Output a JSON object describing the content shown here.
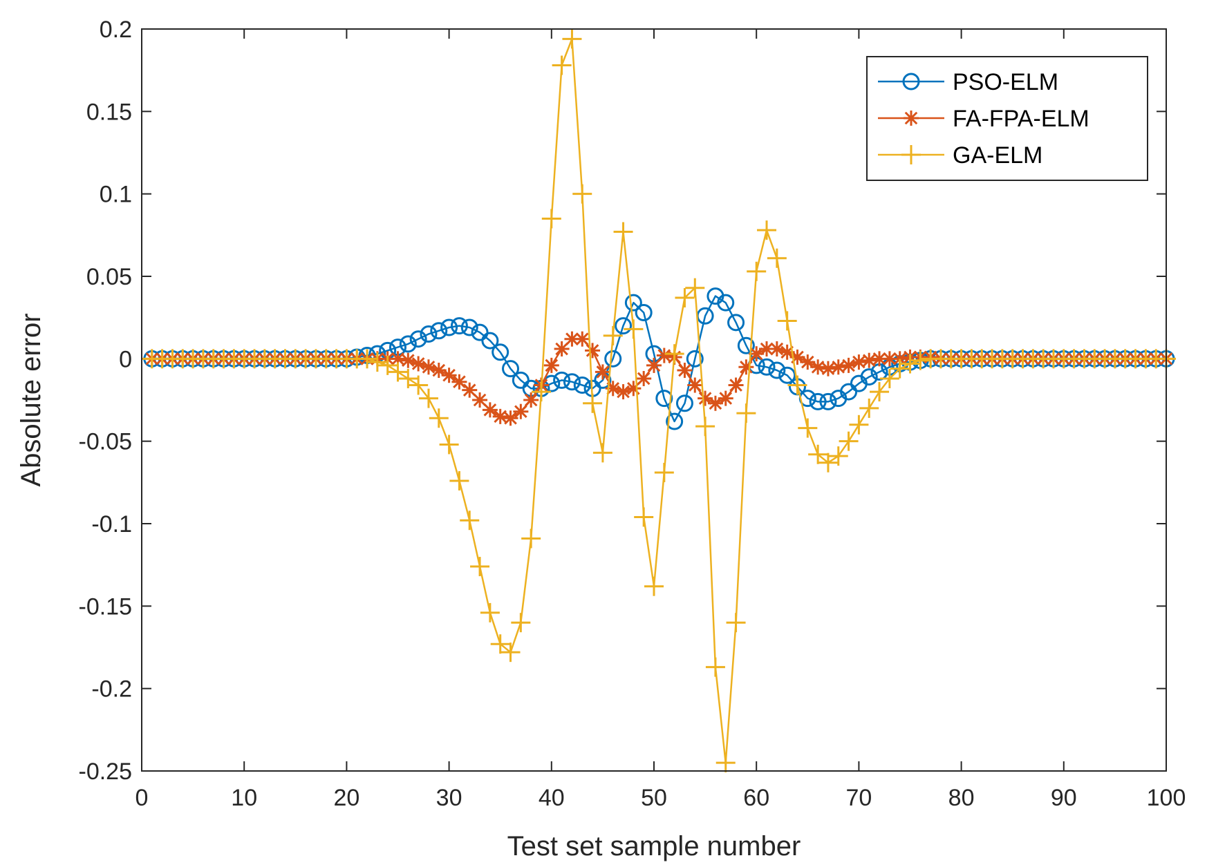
{
  "chart_data": {
    "type": "line",
    "title": "",
    "xlabel": "Test set sample number",
    "ylabel": "Absolute error",
    "xlim": [
      0,
      100
    ],
    "ylim": [
      -0.25,
      0.2
    ],
    "xticks": [
      0,
      10,
      20,
      30,
      40,
      50,
      60,
      70,
      80,
      90,
      100
    ],
    "xtick_labels": [
      "0",
      "10",
      "20",
      "30",
      "40",
      "50",
      "60",
      "70",
      "80",
      "90",
      "100"
    ],
    "yticks": [
      0.2,
      0.15,
      0.1,
      0.05,
      0,
      -0.05,
      -0.1,
      -0.15,
      -0.2,
      -0.25
    ],
    "ytick_labels": [
      "0.2",
      "0.15",
      "0.1",
      "0.05",
      "0",
      "-0.05",
      "-0.1",
      "-0.15",
      "-0.2",
      "-0.25"
    ],
    "grid": false,
    "legend_position": "top-right",
    "x": [
      1,
      2,
      3,
      4,
      5,
      6,
      7,
      8,
      9,
      10,
      11,
      12,
      13,
      14,
      15,
      16,
      17,
      18,
      19,
      20,
      21,
      22,
      23,
      24,
      25,
      26,
      27,
      28,
      29,
      30,
      31,
      32,
      33,
      34,
      35,
      36,
      37,
      38,
      39,
      40,
      41,
      42,
      43,
      44,
      45,
      46,
      47,
      48,
      49,
      50,
      51,
      52,
      53,
      54,
      55,
      56,
      57,
      58,
      59,
      60,
      61,
      62,
      63,
      64,
      65,
      66,
      67,
      68,
      69,
      70,
      71,
      72,
      73,
      74,
      75,
      76,
      77,
      78,
      79,
      80,
      81,
      82,
      83,
      84,
      85,
      86,
      87,
      88,
      89,
      90,
      91,
      92,
      93,
      94,
      95,
      96,
      97,
      98,
      99,
      100
    ],
    "series": [
      {
        "name": "PSO-ELM",
        "color": "#0072BD",
        "marker": "circle",
        "values": [
          0,
          0,
          0,
          0,
          0,
          0,
          0,
          0,
          0,
          0,
          0,
          0,
          0,
          0,
          0,
          0,
          0,
          0,
          0,
          0,
          0.001,
          0.002,
          0.003,
          0.005,
          0.007,
          0.009,
          0.012,
          0.015,
          0.017,
          0.019,
          0.02,
          0.019,
          0.016,
          0.011,
          0.004,
          -0.006,
          -0.013,
          -0.018,
          -0.018,
          -0.015,
          -0.013,
          -0.014,
          -0.016,
          -0.018,
          -0.013,
          0,
          0.02,
          0.034,
          0.028,
          0.003,
          -0.024,
          -0.038,
          -0.027,
          0,
          0.026,
          0.038,
          0.034,
          0.022,
          0.008,
          -0.004,
          -0.005,
          -0.007,
          -0.01,
          -0.017,
          -0.024,
          -0.026,
          -0.026,
          -0.024,
          -0.02,
          -0.015,
          -0.011,
          -0.008,
          -0.005,
          -0.003,
          -0.002,
          -0.001,
          0,
          0,
          0,
          0,
          0,
          0,
          0,
          0,
          0,
          0,
          0,
          0,
          0,
          0,
          0,
          0,
          0,
          0,
          0,
          0,
          0,
          0,
          0,
          0
        ]
      },
      {
        "name": "FA-FPA-ELM",
        "color": "#D95319",
        "marker": "asterisk",
        "values": [
          0,
          0,
          0,
          0,
          0,
          0,
          0,
          0,
          0,
          0,
          0,
          0,
          0,
          0,
          0,
          0,
          0,
          0,
          0,
          0,
          0,
          0,
          0,
          0,
          0,
          -0.001,
          -0.003,
          -0.005,
          -0.007,
          -0.01,
          -0.014,
          -0.019,
          -0.025,
          -0.031,
          -0.035,
          -0.036,
          -0.032,
          -0.025,
          -0.016,
          -0.004,
          0.006,
          0.012,
          0.012,
          0.005,
          -0.008,
          -0.018,
          -0.02,
          -0.018,
          -0.012,
          -0.004,
          0.002,
          0.001,
          -0.007,
          -0.016,
          -0.024,
          -0.027,
          -0.024,
          -0.016,
          -0.005,
          0.003,
          0.006,
          0.006,
          0.004,
          0.001,
          -0.002,
          -0.005,
          -0.006,
          -0.005,
          -0.004,
          -0.002,
          -0.001,
          0,
          0,
          0,
          0.001,
          0.001,
          0.001,
          0,
          0,
          0,
          0,
          0,
          0,
          0,
          0,
          0,
          0,
          0,
          0,
          0,
          0,
          0,
          0,
          0,
          0,
          0,
          0,
          0,
          0,
          0
        ]
      },
      {
        "name": "GA-ELM",
        "color": "#EDB120",
        "marker": "plus",
        "values": [
          0,
          0,
          0,
          0,
          0,
          0,
          0,
          0,
          0,
          0,
          0,
          0,
          0,
          0,
          0,
          0,
          0,
          0,
          0,
          0,
          0,
          0,
          -0.002,
          -0.004,
          -0.008,
          -0.012,
          -0.016,
          -0.024,
          -0.036,
          -0.052,
          -0.074,
          -0.098,
          -0.126,
          -0.154,
          -0.173,
          -0.178,
          -0.16,
          -0.109,
          -0.02,
          0.085,
          0.178,
          0.194,
          0.1,
          -0.027,
          -0.057,
          0.014,
          0.077,
          0.018,
          -0.096,
          -0.138,
          -0.069,
          0.003,
          0.037,
          0.043,
          -0.041,
          -0.187,
          -0.245,
          -0.16,
          -0.033,
          0.053,
          0.078,
          0.061,
          0.023,
          -0.016,
          -0.042,
          -0.058,
          -0.063,
          -0.059,
          -0.05,
          -0.04,
          -0.03,
          -0.02,
          -0.012,
          -0.006,
          -0.003,
          -0.001,
          0,
          0,
          0,
          0,
          0,
          0,
          0,
          0,
          0,
          0,
          0,
          0,
          0,
          0,
          0,
          0,
          0,
          0,
          0,
          0,
          0,
          0,
          0,
          0
        ]
      }
    ]
  }
}
